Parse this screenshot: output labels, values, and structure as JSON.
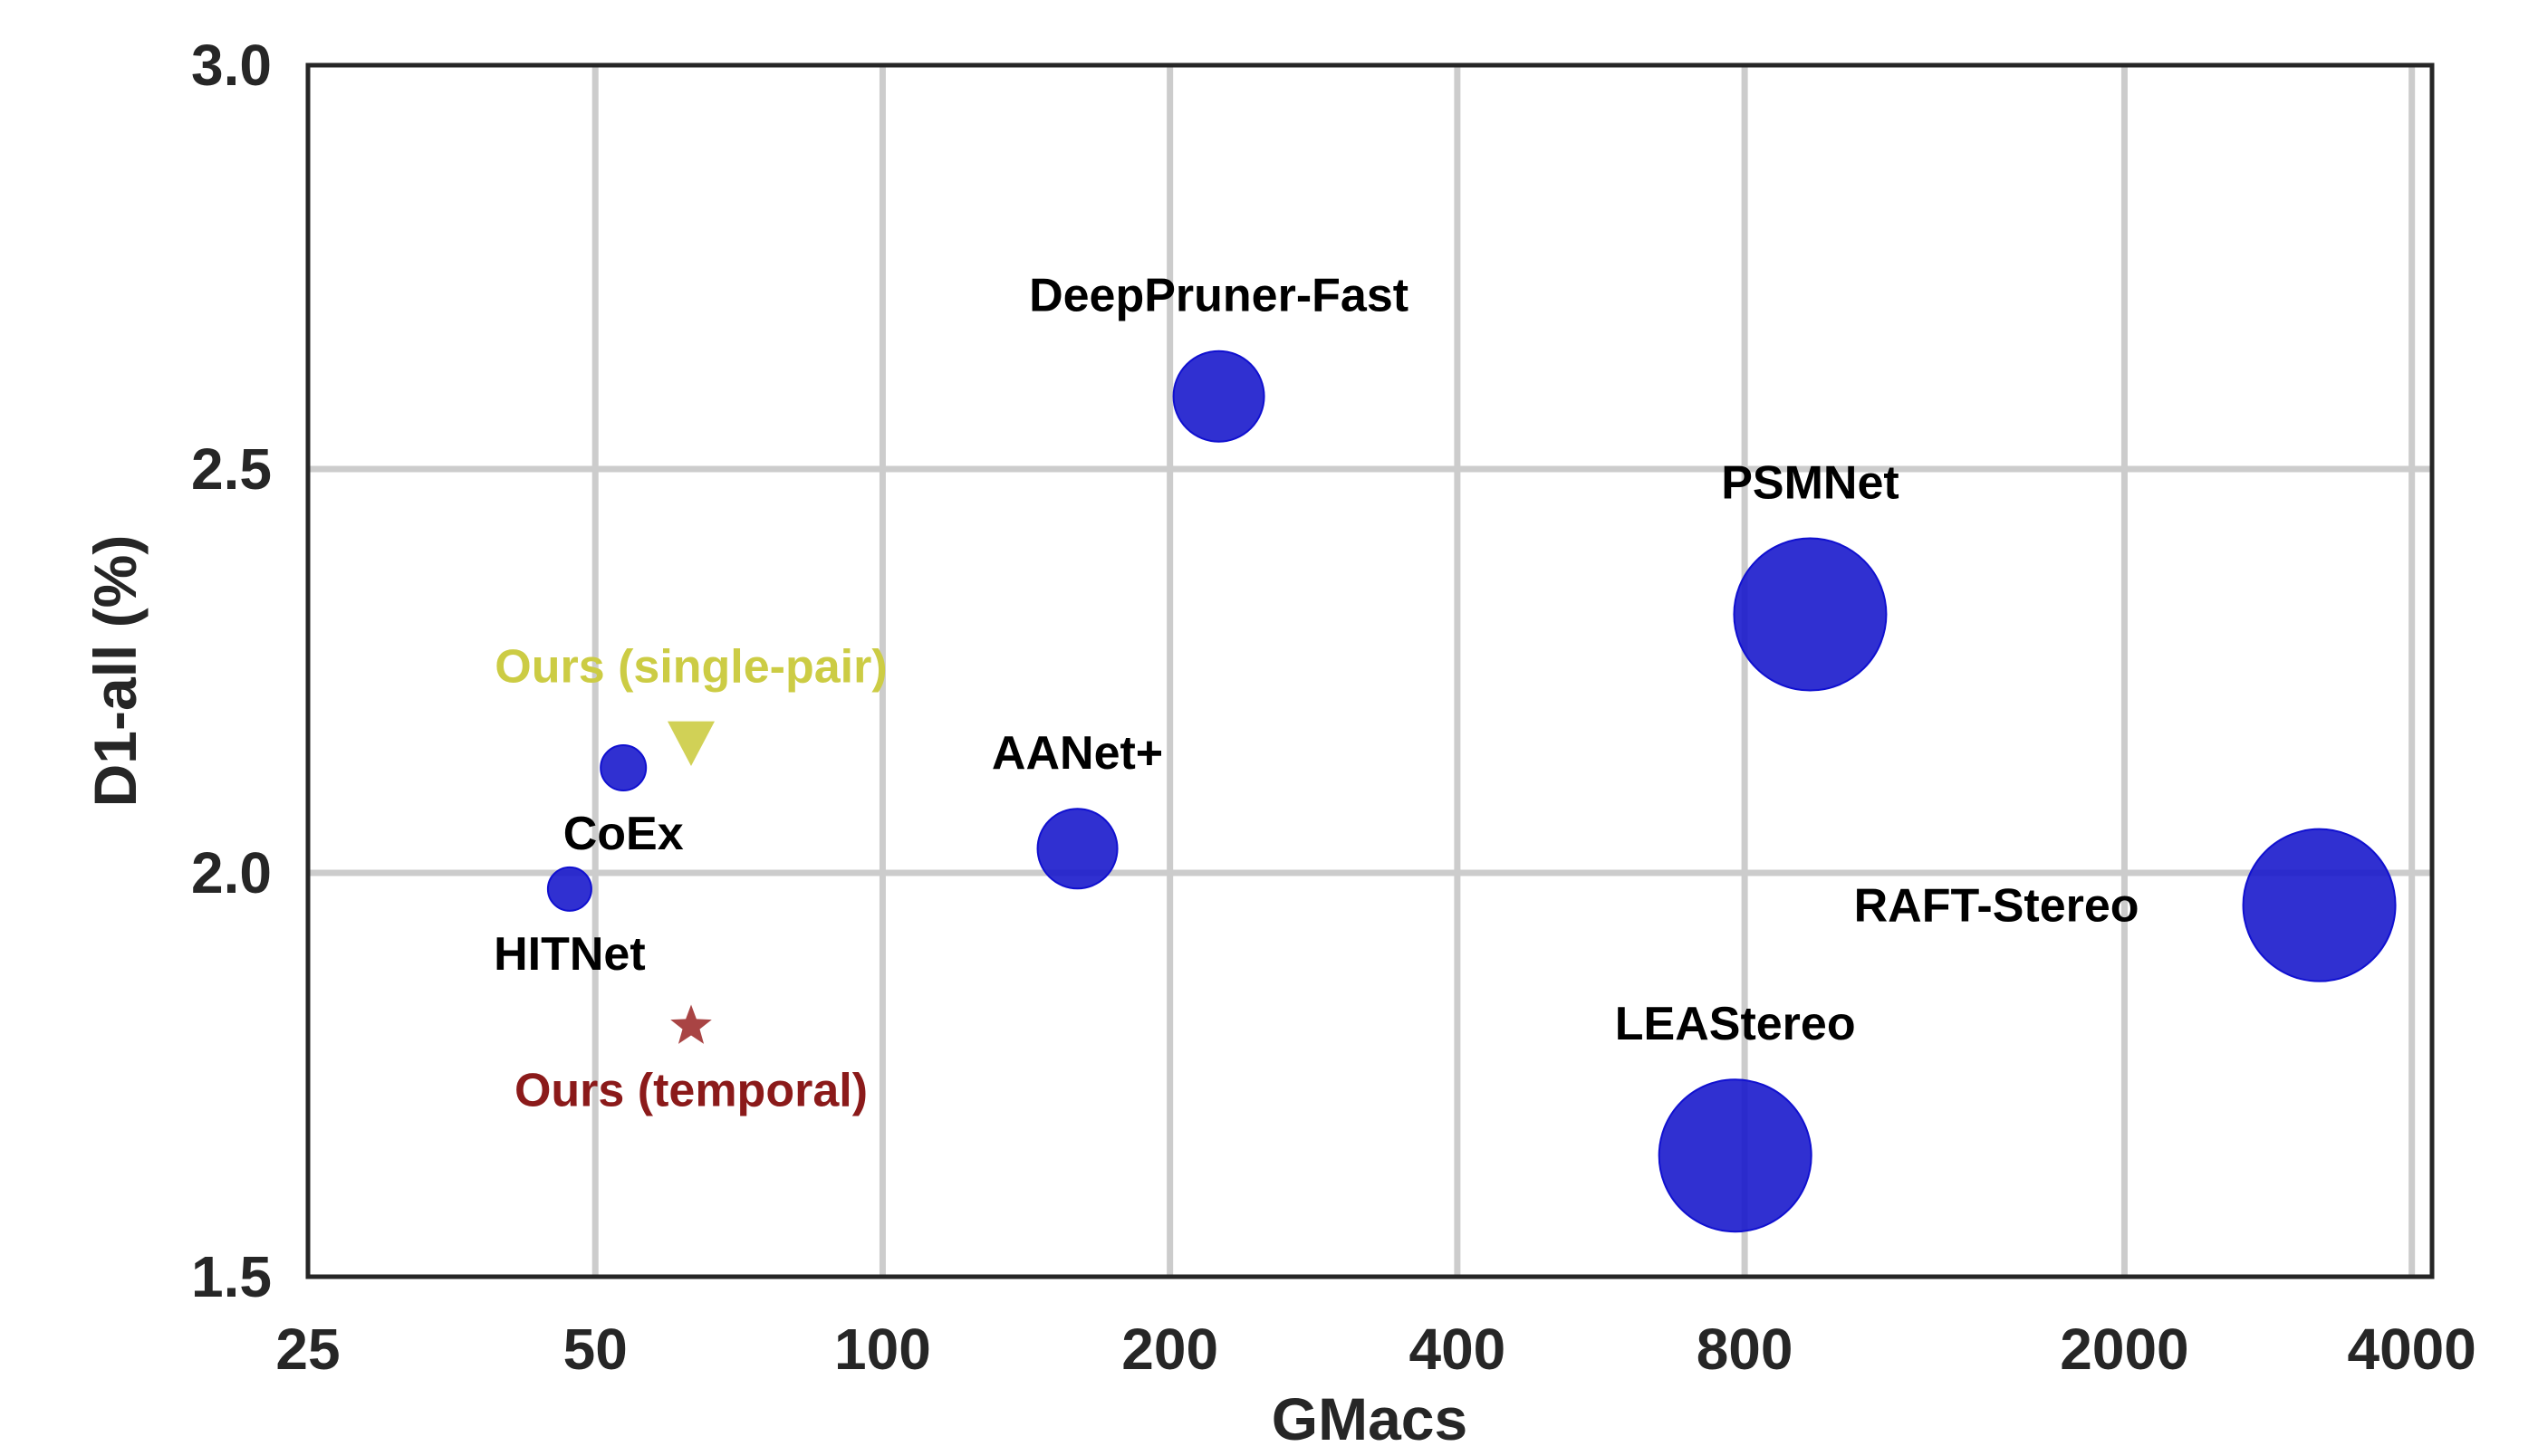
{
  "chart_data": {
    "type": "scatter",
    "xlabel": "GMacs",
    "ylabel": "D1-all (%)",
    "x_scale": "log",
    "xlim": [
      25,
      4200
    ],
    "ylim": [
      1.5,
      3.0
    ],
    "x_ticks": [
      25,
      50,
      100,
      200,
      400,
      800,
      2000,
      4000
    ],
    "x_tick_labels": [
      "25",
      "50",
      "100",
      "200",
      "400",
      "800",
      "2000",
      "4000"
    ],
    "y_ticks": [
      1.5,
      2.0,
      2.5,
      3.0
    ],
    "y_tick_labels": [
      "1.5",
      "2.0",
      "2.5",
      "3.0"
    ],
    "grid": true,
    "points": [
      {
        "label": "DeepPruner-Fast",
        "x": 225,
        "y": 2.59,
        "marker": "circle",
        "color": "#1a1acc",
        "label_color": "#000000",
        "label_pos": "above"
      },
      {
        "label": "PSMNet",
        "x": 937,
        "y": 2.32,
        "marker": "circle",
        "color": "#1a1acc",
        "label_color": "#000000",
        "label_pos": "above"
      },
      {
        "label": "AANet+",
        "x": 160,
        "y": 2.03,
        "marker": "circle",
        "color": "#1a1acc",
        "label_color": "#000000",
        "label_pos": "above"
      },
      {
        "label": "CoEx",
        "x": 53.5,
        "y": 2.13,
        "marker": "circle",
        "color": "#1a1acc",
        "label_color": "#000000",
        "label_pos": "below"
      },
      {
        "label": "HITNet",
        "x": 47,
        "y": 1.98,
        "marker": "circle",
        "color": "#1a1acc",
        "label_color": "#000000",
        "label_pos": "below"
      },
      {
        "label": "LEAStereo",
        "x": 782,
        "y": 1.65,
        "marker": "circle",
        "color": "#1a1acc",
        "label_color": "#000000",
        "label_pos": "above"
      },
      {
        "label": "RAFT-Stereo",
        "x": 3200,
        "y": 1.96,
        "marker": "circle",
        "color": "#1a1acc",
        "label_color": "#000000",
        "label_pos": "left"
      },
      {
        "label": "Ours (single-pair)",
        "x": 63,
        "y": 2.16,
        "marker": "triangle-down",
        "color": "#cccc44",
        "label_color": "#cccc44",
        "label_pos": "above"
      },
      {
        "label": "Ours (temporal)",
        "x": 63,
        "y": 1.81,
        "marker": "star",
        "color": "#a03030",
        "label_color": "#8b1a1a",
        "label_pos": "below"
      }
    ]
  }
}
